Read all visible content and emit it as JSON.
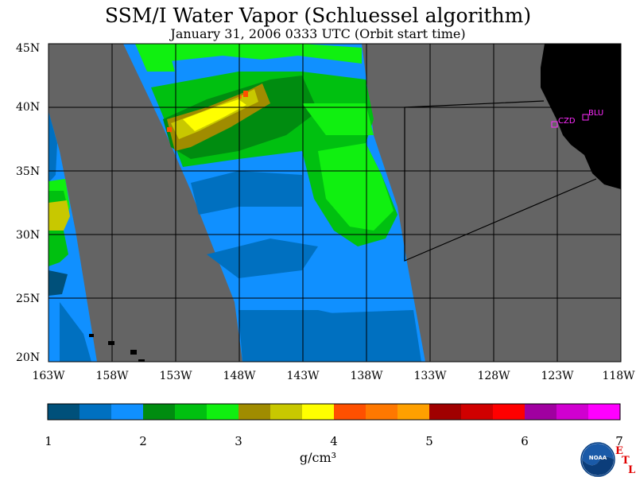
{
  "title": "SSM/I Water Vapor (Schluessel algorithm)",
  "subtitle": "January 31, 2006  0333 UTC  (Orbit start time)",
  "map": {
    "lat_labels": [
      "45N",
      "40N",
      "35N",
      "30N",
      "25N",
      "20N"
    ],
    "lon_labels": [
      "163W",
      "158W",
      "153W",
      "148W",
      "143W",
      "138W",
      "133W",
      "128W",
      "123W",
      "118W"
    ],
    "stations": [
      {
        "id": "CZD",
        "label": "CZD"
      },
      {
        "id": "BLU",
        "label": "BLU"
      }
    ]
  },
  "colorbar": {
    "unit": "g/cm³",
    "tick_labels": [
      "1",
      "2",
      "3",
      "4",
      "5",
      "6",
      "7"
    ],
    "colors": [
      "#00507a",
      "#0070c0",
      "#1090ff",
      "#008c10",
      "#00c010",
      "#10f010",
      "#a08c00",
      "#c8c800",
      "#ffff00",
      "#ff5000",
      "#ff7800",
      "#ffa000",
      "#a00000",
      "#d00000",
      "#ff0000",
      "#a000a0",
      "#d000d0",
      "#ff00ff"
    ]
  },
  "logo": {
    "text": "NOAA",
    "etl_letters": [
      "E",
      "T",
      "L"
    ]
  },
  "colors": {
    "nodata": "#646464",
    "land": "#000000"
  }
}
